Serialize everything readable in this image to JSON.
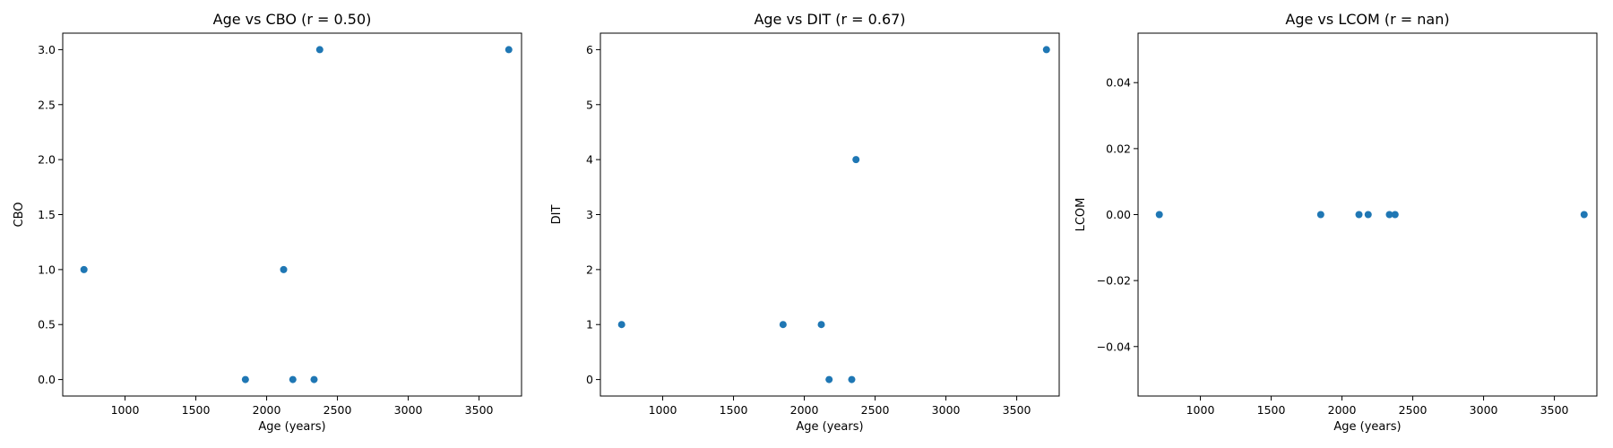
{
  "figure": {
    "background": "#ffffff",
    "point_color": "#1f77b4"
  },
  "chart_data": [
    {
      "type": "scatter",
      "title": "Age vs CBO (r = 0.50)",
      "xlabel": "Age (years)",
      "ylabel": "CBO",
      "xlim": [
        560,
        3800
      ],
      "ylim": [
        -0.15,
        3.15
      ],
      "xticks": [
        1000,
        1500,
        2000,
        2500,
        3000,
        3500
      ],
      "yticks": [
        0.0,
        0.5,
        1.0,
        1.5,
        2.0,
        2.5,
        3.0
      ],
      "yticklabels": [
        "0.0",
        "0.5",
        "1.0",
        "1.5",
        "2.0",
        "2.5",
        "3.0"
      ],
      "grid": false,
      "points": [
        {
          "x": 710,
          "y": 1
        },
        {
          "x": 1850,
          "y": 0
        },
        {
          "x": 2120,
          "y": 1
        },
        {
          "x": 2185,
          "y": 0
        },
        {
          "x": 2335,
          "y": 0
        },
        {
          "x": 2375,
          "y": 3
        },
        {
          "x": 3710,
          "y": 3
        }
      ]
    },
    {
      "type": "scatter",
      "title": "Age vs DIT (r = 0.67)",
      "xlabel": "Age (years)",
      "ylabel": "DIT",
      "xlim": [
        560,
        3800
      ],
      "ylim": [
        -0.3,
        6.3
      ],
      "xticks": [
        1000,
        1500,
        2000,
        2500,
        3000,
        3500
      ],
      "yticks": [
        0,
        1,
        2,
        3,
        4,
        5,
        6
      ],
      "yticklabels": [
        "0",
        "1",
        "2",
        "3",
        "4",
        "5",
        "6"
      ],
      "grid": false,
      "points": [
        {
          "x": 710,
          "y": 1
        },
        {
          "x": 1850,
          "y": 1
        },
        {
          "x": 2120,
          "y": 1
        },
        {
          "x": 2175,
          "y": 0
        },
        {
          "x": 2335,
          "y": 0
        },
        {
          "x": 2365,
          "y": 4
        },
        {
          "x": 3710,
          "y": 6
        }
      ]
    },
    {
      "type": "scatter",
      "title": "Age vs LCOM (r = nan)",
      "xlabel": "Age (years)",
      "ylabel": "LCOM",
      "xlim": [
        560,
        3800
      ],
      "ylim": [
        -0.055,
        0.055
      ],
      "xticks": [
        1000,
        1500,
        2000,
        2500,
        3000,
        3500
      ],
      "yticks": [
        -0.04,
        -0.02,
        0.0,
        0.02,
        0.04
      ],
      "yticklabels": [
        "−0.04",
        "−0.02",
        "0.00",
        "0.02",
        "0.04"
      ],
      "grid": false,
      "points": [
        {
          "x": 710,
          "y": 0
        },
        {
          "x": 1850,
          "y": 0
        },
        {
          "x": 2120,
          "y": 0
        },
        {
          "x": 2185,
          "y": 0
        },
        {
          "x": 2335,
          "y": 0
        },
        {
          "x": 2375,
          "y": 0
        },
        {
          "x": 3710,
          "y": 0
        }
      ]
    }
  ]
}
